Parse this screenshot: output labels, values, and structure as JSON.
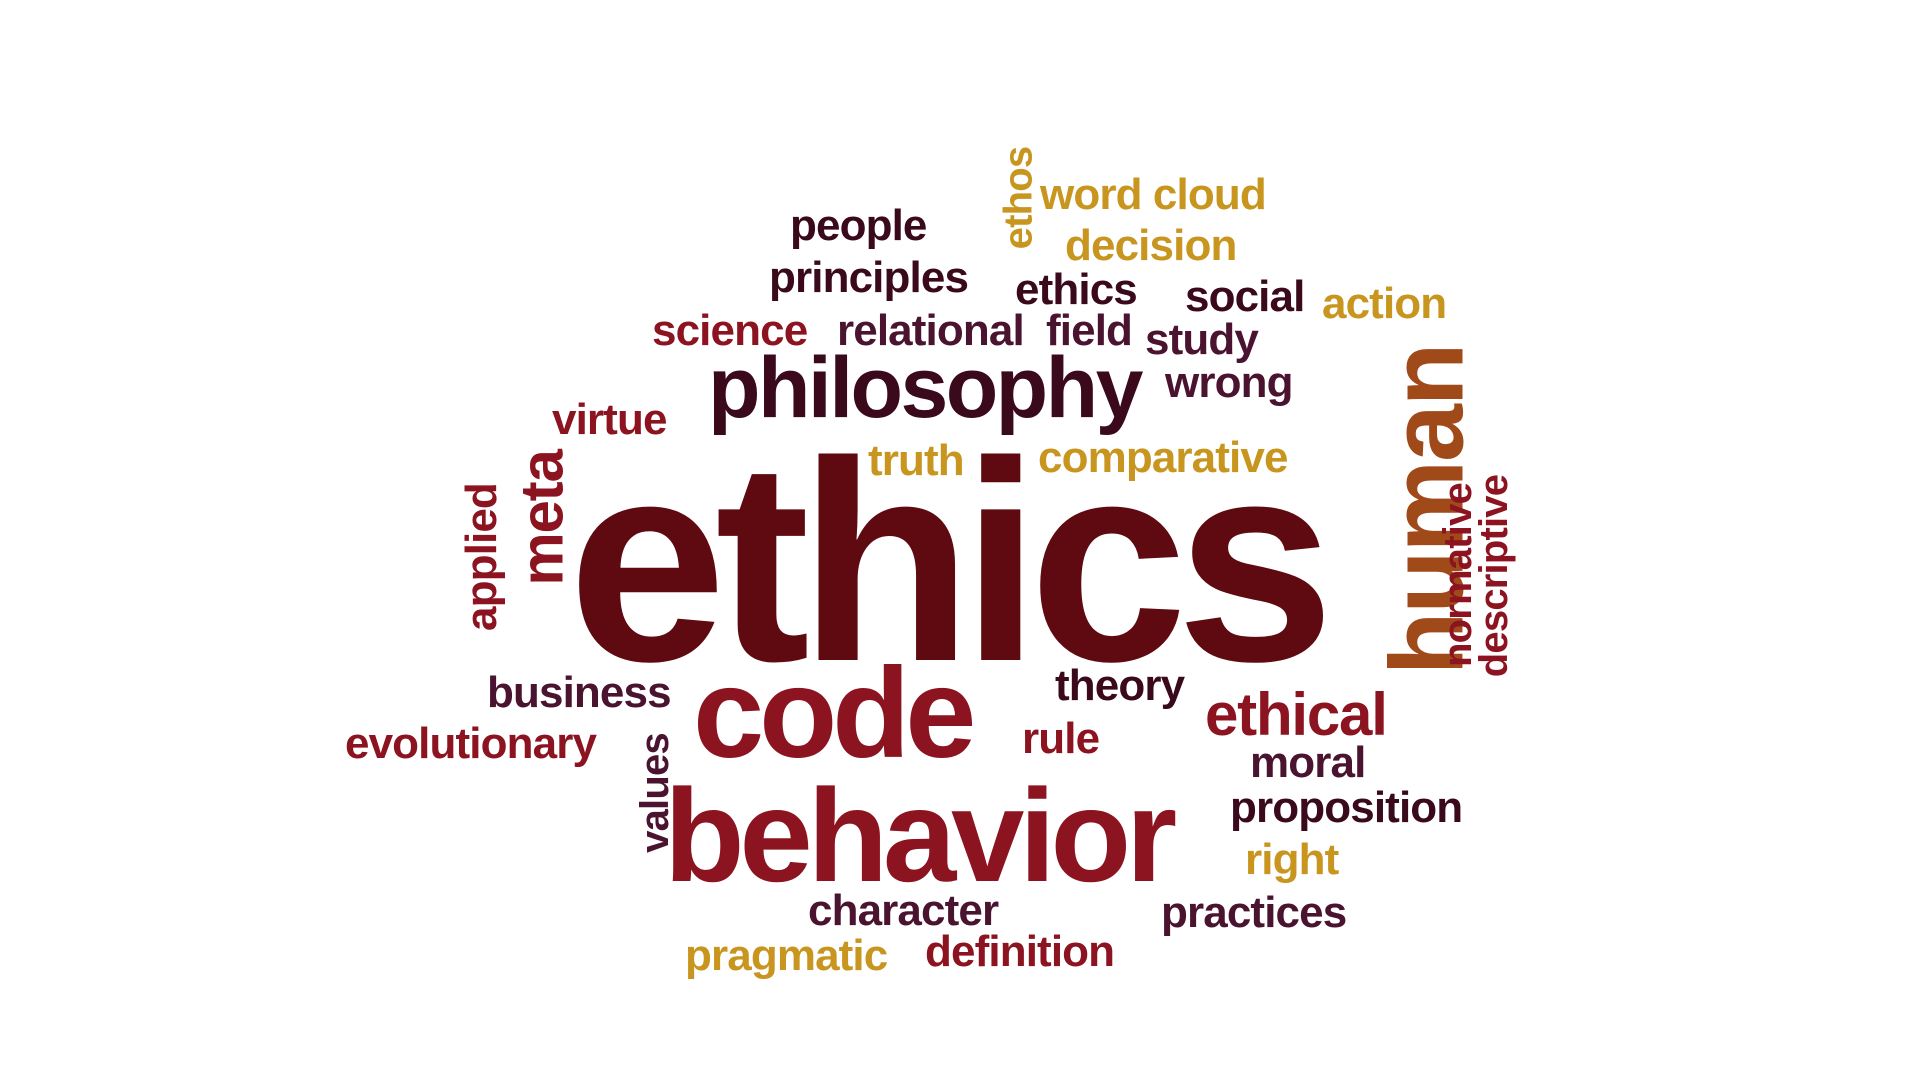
{
  "palette": {
    "dark": "#3a0a1c",
    "maroon": "#5e0a10",
    "red": "#8c1420",
    "gold": "#c8951f",
    "brown": "#a04a1a",
    "plum": "#4a1430",
    "background": "#ffffff"
  },
  "words": {
    "ethics_big": "ethics",
    "code": "code",
    "behavior": "behavior",
    "philosophy": "philosophy",
    "human": "human",
    "ethical": "ethical",
    "people": "people",
    "principles": "principles",
    "ethics_small": "ethics",
    "social": "social",
    "action": "action",
    "word_cloud": "word cloud",
    "decision": "decision",
    "ethos": "ethos",
    "science": "science",
    "relational": "relational",
    "field": "field",
    "study": "study",
    "wrong": "wrong",
    "virtue": "virtue",
    "truth": "truth",
    "comparative": "comparative",
    "meta": "meta",
    "applied": "applied",
    "normative": "normative",
    "descriptive": "descriptive",
    "business": "business",
    "evolutionary": "evolutionary",
    "values": "values",
    "theory": "theory",
    "rule": "rule",
    "moral": "moral",
    "proposition": "proposition",
    "right": "right",
    "character": "character",
    "practices": "practices",
    "pragmatic": "pragmatic",
    "definition": "definition"
  }
}
